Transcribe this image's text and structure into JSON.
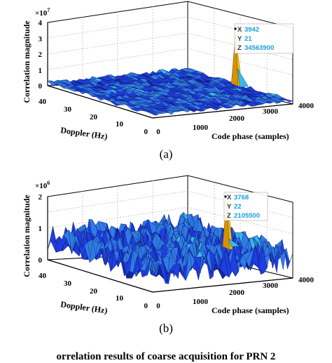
{
  "chart_data": [
    {
      "type": "surface",
      "panel_label": "(a)",
      "xlabel": "Code phase (samples)",
      "ylabel": "Doppler (Hz)",
      "zlabel": "Correlation magnitude",
      "x_ticks": [
        "0",
        "1000",
        "2000",
        "3000",
        "4000"
      ],
      "y_ticks": [
        "0",
        "10",
        "20",
        "30",
        "40"
      ],
      "z_ticks": [
        "0",
        "1",
        "2",
        "3",
        "4"
      ],
      "z_multiplier": "×10",
      "z_exponent": "7",
      "xlim": [
        0,
        4000
      ],
      "ylim": [
        0,
        40
      ],
      "zlim": [
        0,
        40000000
      ],
      "noise_floor": 2500000,
      "peak": {
        "x": 3942,
        "y": 21,
        "z": 34563900
      },
      "datatip": {
        "x_label": "X",
        "x_value": "3942",
        "y_label": "Y",
        "y_value": "21",
        "z_label": "Z",
        "z_value": "34563900"
      },
      "grid": true
    },
    {
      "type": "surface",
      "panel_label": "(b)",
      "xlabel": "Code phase (samples)",
      "ylabel": "Doppler (Hz)",
      "zlabel": "Correlation magnitude",
      "x_ticks": [
        "0",
        "1000",
        "2000",
        "3000",
        "4000"
      ],
      "y_ticks": [
        "0",
        "10",
        "20",
        "30",
        "40"
      ],
      "z_ticks": [
        "0",
        "1",
        "2"
      ],
      "z_multiplier": "×10",
      "z_exponent": "6",
      "xlim": [
        0,
        4000
      ],
      "ylim": [
        0,
        40
      ],
      "zlim": [
        0,
        2000000
      ],
      "noise_floor": 700000,
      "peak": {
        "x": 3768,
        "y": 22,
        "z": 2105500
      },
      "datatip": {
        "x_label": "X",
        "x_value": "3768",
        "y_label": "Y",
        "y_value": "22",
        "z_label": "Z",
        "z_value": "2105500"
      },
      "grid": true
    }
  ],
  "caption": "orrelation results of coarse acquisition for PRN 2",
  "colors": {
    "surface_dark": "#0a1a7a",
    "surface_mid": "#1f3fe0",
    "surface_light": "#39b8e8",
    "peak": "#e8c800",
    "datatip_text": "#1a9fe0"
  }
}
